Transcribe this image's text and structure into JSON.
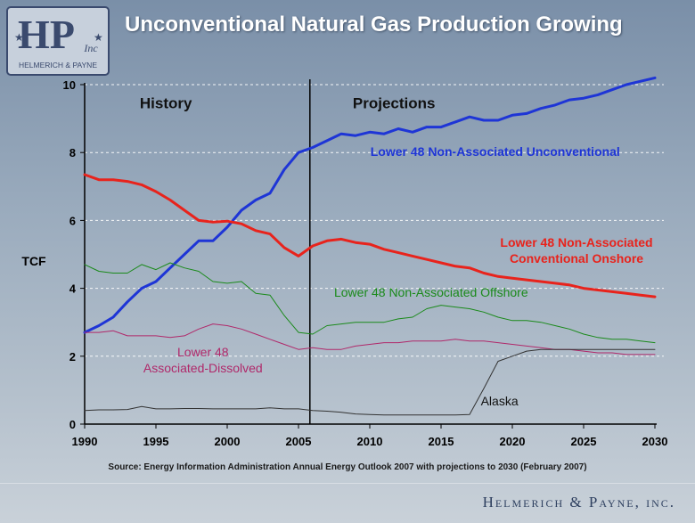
{
  "header": {
    "title": "Unconventional Natural Gas Production Growing",
    "logo_text": "HP",
    "logo_subtext": "Inc",
    "logo_caption": "HELMERICH & PAYNE"
  },
  "footer": {
    "source": "Source: Energy Information Administration Annual Energy Outlook 2007 with projections to 2030 (February 2007)",
    "company": "Helmerich & Payne, inc."
  },
  "colors": {
    "title": "#ffffff",
    "unconventional": "#1e35d6",
    "conventional": "#e8231c",
    "offshore": "#1a8a1a",
    "associated": "#b0286a",
    "alaska": "#333333",
    "divider": "#000000"
  },
  "chart_data": {
    "type": "line",
    "ylabel": "TCF",
    "ylim": [
      0,
      10
    ],
    "yticks": [
      0,
      2,
      4,
      6,
      8,
      10
    ],
    "xlim": [
      1990,
      2030
    ],
    "xticks": [
      1990,
      1995,
      2000,
      2005,
      2010,
      2015,
      2020,
      2025,
      2030
    ],
    "grid": "horizontal-dashed",
    "divider_x": 2005.8,
    "regions": [
      {
        "label": "History",
        "x": 1995.7,
        "y": 9.3
      },
      {
        "label": "Projections",
        "x": 2011.7,
        "y": 9.3
      }
    ],
    "series": [
      {
        "name": "Lower 48 Non-Associated Unconventional",
        "color": "#1e35d6",
        "width": 3,
        "label_lines": [
          "Lower 48 Non-Associated Unconventional"
        ],
        "label_pos": [
          2018.8,
          7.9
        ],
        "label_color": "#1e35d6",
        "x": [
          1990,
          1991,
          1992,
          1993,
          1994,
          1995,
          1996,
          1997,
          1998,
          1999,
          2000,
          2001,
          2002,
          2003,
          2004,
          2005,
          2006,
          2007,
          2008,
          2009,
          2010,
          2011,
          2012,
          2013,
          2014,
          2015,
          2016,
          2017,
          2018,
          2019,
          2020,
          2021,
          2022,
          2023,
          2024,
          2025,
          2026,
          2027,
          2028,
          2029,
          2030
        ],
        "values": [
          2.7,
          2.9,
          3.15,
          3.6,
          4.0,
          4.2,
          4.6,
          5.0,
          5.4,
          5.4,
          5.8,
          6.3,
          6.6,
          6.8,
          7.5,
          8.0,
          8.15,
          8.35,
          8.55,
          8.5,
          8.6,
          8.55,
          8.7,
          8.6,
          8.75,
          8.75,
          8.9,
          9.05,
          8.95,
          8.95,
          9.1,
          9.15,
          9.3,
          9.4,
          9.55,
          9.6,
          9.7,
          9.85,
          10.0,
          10.1,
          10.2
        ]
      },
      {
        "name": "Lower 48 Non-Associated Conventional Onshore",
        "color": "#e8231c",
        "width": 3,
        "label_lines": [
          "Lower 48 Non-Associated",
          "Conventional Onshore"
        ],
        "label_pos": [
          2024.5,
          5.22
        ],
        "label_color": "#e8231c",
        "x": [
          1990,
          1991,
          1992,
          1993,
          1994,
          1995,
          1996,
          1997,
          1998,
          1999,
          2000,
          2001,
          2002,
          2003,
          2004,
          2005,
          2006,
          2007,
          2008,
          2009,
          2010,
          2011,
          2012,
          2013,
          2014,
          2015,
          2016,
          2017,
          2018,
          2019,
          2020,
          2021,
          2022,
          2023,
          2024,
          2025,
          2026,
          2027,
          2028,
          2029,
          2030
        ],
        "values": [
          7.35,
          7.2,
          7.2,
          7.15,
          7.05,
          6.85,
          6.6,
          6.3,
          6.0,
          5.95,
          5.98,
          5.9,
          5.7,
          5.6,
          5.2,
          4.95,
          5.25,
          5.4,
          5.45,
          5.35,
          5.3,
          5.15,
          5.05,
          4.95,
          4.85,
          4.75,
          4.65,
          4.6,
          4.45,
          4.35,
          4.3,
          4.25,
          4.2,
          4.15,
          4.1,
          4.0,
          3.95,
          3.9,
          3.85,
          3.8,
          3.75
        ]
      },
      {
        "name": "Lower 48 Non-Associated Offshore",
        "color": "#1a8a1a",
        "width": 1,
        "label_lines": [
          "Lower 48 Non-Associated Offshore"
        ],
        "label_pos": [
          2014.3,
          3.75
        ],
        "label_color": "#1a8a1a",
        "x": [
          1990,
          1991,
          1992,
          1993,
          1994,
          1995,
          1996,
          1997,
          1998,
          1999,
          2000,
          2001,
          2002,
          2003,
          2004,
          2005,
          2006,
          2007,
          2008,
          2009,
          2010,
          2011,
          2012,
          2013,
          2014,
          2015,
          2016,
          2017,
          2018,
          2019,
          2020,
          2021,
          2022,
          2023,
          2024,
          2025,
          2026,
          2027,
          2028,
          2029,
          2030
        ],
        "values": [
          4.7,
          4.5,
          4.45,
          4.45,
          4.7,
          4.55,
          4.75,
          4.6,
          4.5,
          4.2,
          4.15,
          4.2,
          3.85,
          3.8,
          3.2,
          2.7,
          2.65,
          2.9,
          2.95,
          3.0,
          3.0,
          3.0,
          3.1,
          3.15,
          3.4,
          3.5,
          3.45,
          3.4,
          3.3,
          3.15,
          3.05,
          3.05,
          3.0,
          2.9,
          2.8,
          2.65,
          2.55,
          2.5,
          2.5,
          2.45,
          2.4
        ]
      },
      {
        "name": "Lower 48 Associated-Dissolved",
        "color": "#b0286a",
        "width": 1,
        "label_lines": [
          "Lower 48",
          "Associated-Dissolved"
        ],
        "label_pos": [
          1998.3,
          2.0
        ],
        "label_color": "#b0286a",
        "x": [
          1990,
          1991,
          1992,
          1993,
          1994,
          1995,
          1996,
          1997,
          1998,
          1999,
          2000,
          2001,
          2002,
          2003,
          2004,
          2005,
          2006,
          2007,
          2008,
          2009,
          2010,
          2011,
          2012,
          2013,
          2014,
          2015,
          2016,
          2017,
          2018,
          2019,
          2020,
          2021,
          2022,
          2023,
          2024,
          2025,
          2026,
          2027,
          2028,
          2029,
          2030
        ],
        "values": [
          2.7,
          2.7,
          2.75,
          2.6,
          2.6,
          2.6,
          2.55,
          2.6,
          2.8,
          2.95,
          2.9,
          2.8,
          2.65,
          2.5,
          2.35,
          2.2,
          2.25,
          2.2,
          2.2,
          2.3,
          2.35,
          2.4,
          2.4,
          2.45,
          2.45,
          2.45,
          2.5,
          2.45,
          2.45,
          2.4,
          2.35,
          2.3,
          2.25,
          2.2,
          2.2,
          2.15,
          2.1,
          2.1,
          2.05,
          2.05,
          2.05
        ]
      },
      {
        "name": "Alaska",
        "color": "#333333",
        "width": 1,
        "label_lines": [
          "Alaska"
        ],
        "label_pos": [
          2019.1,
          0.55
        ],
        "label_color": "#111111",
        "x": [
          1990,
          1991,
          1992,
          1993,
          1994,
          1995,
          1996,
          1997,
          1998,
          1999,
          2000,
          2001,
          2002,
          2003,
          2004,
          2005,
          2006,
          2007,
          2008,
          2009,
          2010,
          2011,
          2012,
          2013,
          2014,
          2015,
          2016,
          2017,
          2018,
          2019,
          2020,
          2021,
          2022,
          2023,
          2024,
          2025,
          2026,
          2027,
          2028,
          2029,
          2030
        ],
        "values": [
          0.4,
          0.42,
          0.42,
          0.43,
          0.52,
          0.45,
          0.45,
          0.46,
          0.46,
          0.45,
          0.45,
          0.45,
          0.45,
          0.48,
          0.45,
          0.45,
          0.4,
          0.38,
          0.35,
          0.3,
          0.28,
          0.27,
          0.27,
          0.27,
          0.27,
          0.27,
          0.27,
          0.28,
          1.05,
          1.85,
          2.0,
          2.15,
          2.2,
          2.2,
          2.2,
          2.2,
          2.2,
          2.2,
          2.2,
          2.2,
          2.2
        ]
      }
    ]
  }
}
